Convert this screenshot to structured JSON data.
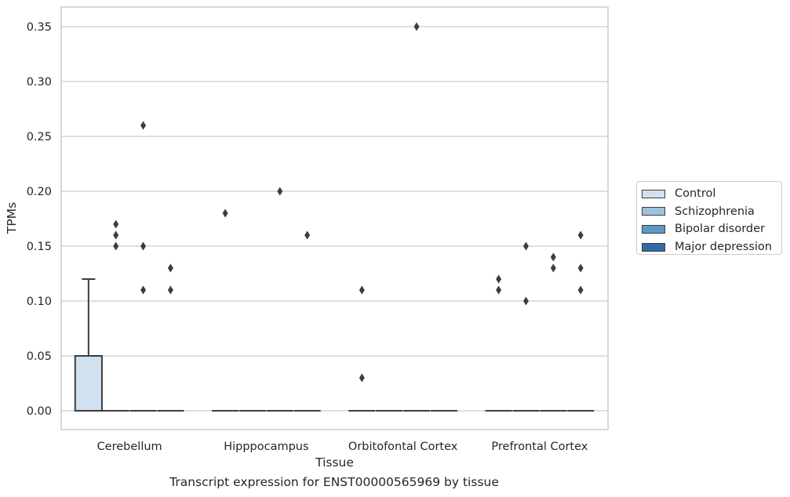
{
  "chart_data": {
    "type": "boxplot",
    "xlabel": "Tissue",
    "ylabel": "TPMs",
    "caption": "Transcript expression for ENST00000565969 by tissue",
    "ylim": [
      -0.017,
      0.367
    ],
    "yticks": [
      "0.00",
      "0.05",
      "0.10",
      "0.15",
      "0.20",
      "0.25",
      "0.30",
      "0.35"
    ],
    "grid": "horizontal",
    "legend_position": "right",
    "categories": [
      "Cerebellum",
      "Hipppocampus",
      "Orbitofontal Cortex",
      "Prefrontal Cortex"
    ],
    "series": [
      {
        "name": "Control",
        "color": "#d1e1f0",
        "boxes": [
          {
            "q1": 0.0,
            "median": 0.0,
            "q3": 0.05,
            "whisker_low": 0.0,
            "whisker_high": 0.12,
            "outliers": []
          },
          {
            "q1": 0.0,
            "median": 0.0,
            "q3": 0.0,
            "whisker_low": 0.0,
            "whisker_high": 0.0,
            "outliers": [
              0.18
            ]
          },
          {
            "q1": 0.0,
            "median": 0.0,
            "q3": 0.0,
            "whisker_low": 0.0,
            "whisker_high": 0.0,
            "outliers": [
              0.11,
              0.03
            ]
          },
          {
            "q1": 0.0,
            "median": 0.0,
            "q3": 0.0,
            "whisker_low": 0.0,
            "whisker_high": 0.0,
            "outliers": [
              0.12,
              0.11
            ]
          }
        ]
      },
      {
        "name": "Schizophrenia",
        "color": "#9ec2d9",
        "boxes": [
          {
            "q1": 0.0,
            "median": 0.0,
            "q3": 0.0,
            "whisker_low": 0.0,
            "whisker_high": 0.0,
            "outliers": [
              0.17,
              0.16,
              0.15
            ]
          },
          {
            "q1": 0.0,
            "median": 0.0,
            "q3": 0.0,
            "whisker_low": 0.0,
            "whisker_high": 0.0,
            "outliers": []
          },
          {
            "q1": 0.0,
            "median": 0.0,
            "q3": 0.0,
            "whisker_low": 0.0,
            "whisker_high": 0.0,
            "outliers": []
          },
          {
            "q1": 0.0,
            "median": 0.0,
            "q3": 0.0,
            "whisker_low": 0.0,
            "whisker_high": 0.0,
            "outliers": [
              0.15,
              0.1
            ]
          }
        ]
      },
      {
        "name": "Bipolar disorder",
        "color": "#5b9ac6",
        "boxes": [
          {
            "q1": 0.0,
            "median": 0.0,
            "q3": 0.0,
            "whisker_low": 0.0,
            "whisker_high": 0.0,
            "outliers": [
              0.26,
              0.15,
              0.11
            ]
          },
          {
            "q1": 0.0,
            "median": 0.0,
            "q3": 0.0,
            "whisker_low": 0.0,
            "whisker_high": 0.0,
            "outliers": [
              0.2
            ]
          },
          {
            "q1": 0.0,
            "median": 0.0,
            "q3": 0.0,
            "whisker_low": 0.0,
            "whisker_high": 0.0,
            "outliers": [
              0.35
            ]
          },
          {
            "q1": 0.0,
            "median": 0.0,
            "q3": 0.0,
            "whisker_low": 0.0,
            "whisker_high": 0.0,
            "outliers": [
              0.14,
              0.13
            ]
          }
        ]
      },
      {
        "name": "Major depression",
        "color": "#2f6aa8",
        "boxes": [
          {
            "q1": 0.0,
            "median": 0.0,
            "q3": 0.0,
            "whisker_low": 0.0,
            "whisker_high": 0.0,
            "outliers": [
              0.13,
              0.11
            ]
          },
          {
            "q1": 0.0,
            "median": 0.0,
            "q3": 0.0,
            "whisker_low": 0.0,
            "whisker_high": 0.0,
            "outliers": [
              0.16
            ]
          },
          {
            "q1": 0.0,
            "median": 0.0,
            "q3": 0.0,
            "whisker_low": 0.0,
            "whisker_high": 0.0,
            "outliers": []
          },
          {
            "q1": 0.0,
            "median": 0.0,
            "q3": 0.0,
            "whisker_low": 0.0,
            "whisker_high": 0.0,
            "outliers": [
              0.16,
              0.13,
              0.11
            ]
          }
        ]
      }
    ]
  }
}
